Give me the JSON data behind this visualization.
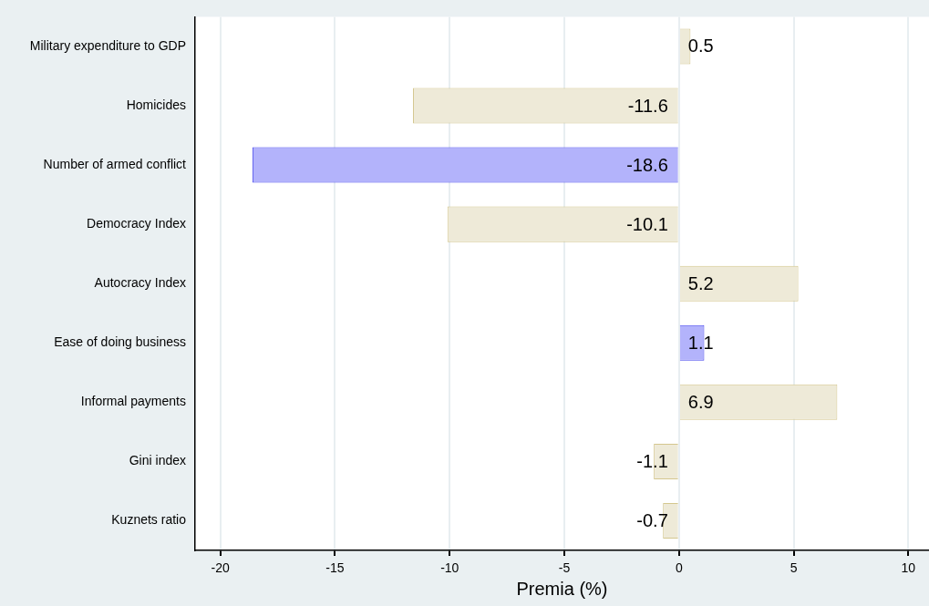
{
  "chart_data": {
    "type": "bar",
    "orientation": "horizontal",
    "xlabel": "Premia (%)",
    "categories": [
      "Military expenditure to GDP",
      "Homicides",
      "Number of armed conflict",
      "Democracy Index",
      "Autocracy Index",
      "Ease of doing business",
      "Informal payments",
      "Gini index",
      "Kuznets ratio"
    ],
    "values": [
      0.5,
      -11.6,
      -18.6,
      -10.1,
      5.2,
      1.1,
      6.9,
      -1.1,
      -0.7
    ],
    "colors": [
      "#eeead8",
      "#eeead8",
      "#b3b3fb",
      "#eeead8",
      "#eeead8",
      "#b3b3fb",
      "#eeead8",
      "#eeead8",
      "#eeead8"
    ],
    "xlim": [
      -21.1,
      10.9
    ],
    "xticks": [
      -20,
      -15,
      -10,
      -5,
      0,
      5,
      10
    ],
    "grid": "x",
    "data_labels": true,
    "legend": false
  }
}
